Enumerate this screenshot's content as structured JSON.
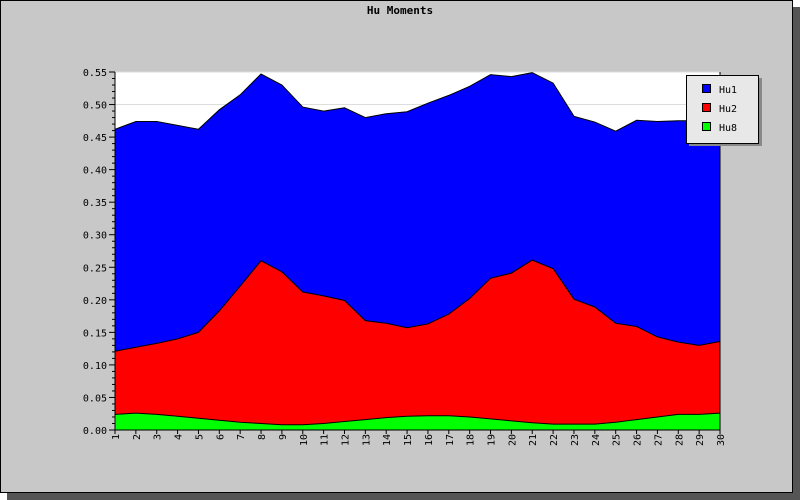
{
  "chart_data": {
    "type": "area",
    "title": "Hu Moments",
    "xlabel": "",
    "ylabel": "",
    "categories": [
      "1",
      "2",
      "3",
      "4",
      "5",
      "6",
      "7",
      "8",
      "9",
      "10",
      "11",
      "12",
      "13",
      "14",
      "15",
      "16",
      "17",
      "18",
      "19",
      "20",
      "21",
      "22",
      "23",
      "24",
      "25",
      "26",
      "27",
      "28",
      "29",
      "30"
    ],
    "ylim": [
      0,
      0.55
    ],
    "yticks": [
      "0.00",
      "0.05",
      "0.10",
      "0.15",
      "0.20",
      "0.25",
      "0.30",
      "0.35",
      "0.40",
      "0.45",
      "0.50",
      "0.55"
    ],
    "grid": true,
    "legend_position": "top-right",
    "series": [
      {
        "name": "Hu1",
        "color": "#0000ff",
        "values": [
          0.462,
          0.474,
          0.474,
          0.468,
          0.462,
          0.492,
          0.515,
          0.547,
          0.53,
          0.496,
          0.49,
          0.495,
          0.48,
          0.486,
          0.489,
          0.502,
          0.514,
          0.528,
          0.546,
          0.543,
          0.549,
          0.533,
          0.482,
          0.473,
          0.459,
          0.476,
          0.474,
          0.475,
          0.475,
          0.477
        ]
      },
      {
        "name": "Hu2",
        "color": "#ff0000",
        "values": [
          0.121,
          0.127,
          0.133,
          0.14,
          0.15,
          0.183,
          0.221,
          0.26,
          0.243,
          0.212,
          0.206,
          0.199,
          0.168,
          0.164,
          0.157,
          0.163,
          0.178,
          0.202,
          0.233,
          0.241,
          0.261,
          0.248,
          0.201,
          0.189,
          0.164,
          0.159,
          0.143,
          0.135,
          0.13,
          0.136
        ]
      },
      {
        "name": "Hu8",
        "color": "#00ff00",
        "values": [
          0.024,
          0.026,
          0.024,
          0.021,
          0.018,
          0.015,
          0.012,
          0.01,
          0.008,
          0.008,
          0.01,
          0.013,
          0.016,
          0.019,
          0.021,
          0.022,
          0.022,
          0.02,
          0.017,
          0.014,
          0.011,
          0.009,
          0.009,
          0.009,
          0.012,
          0.016,
          0.02,
          0.024,
          0.024,
          0.026
        ]
      }
    ]
  }
}
